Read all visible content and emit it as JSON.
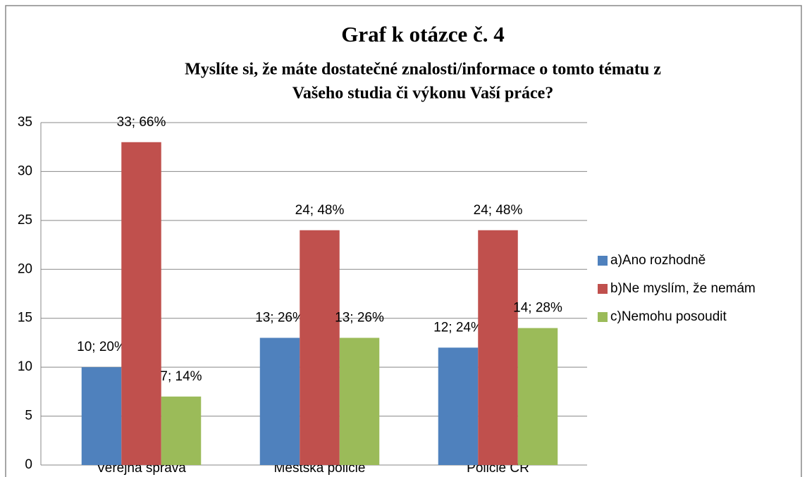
{
  "chart_data": {
    "type": "bar",
    "title": "Graf k otázce č. 4",
    "subtitle": [
      "Myslíte si, že máte dostatečné znalosti/informace o tomto tématu z",
      "Vašeho studia či výkonu Vaší práce?"
    ],
    "categories": [
      "Veřejná správa",
      "Městská policie",
      "Policie ČR"
    ],
    "series": [
      {
        "name": "a)Ano rozhodně",
        "color": "#4f81bd",
        "values": [
          10,
          13,
          12
        ],
        "value_labels": [
          "10; 20%",
          "13; 26%",
          "12; 24%"
        ]
      },
      {
        "name": "b)Ne myslím, že nemám",
        "color": "#c0504d",
        "values": [
          33,
          24,
          24
        ],
        "value_labels": [
          "33; 66%",
          "24; 48%",
          "24; 48%"
        ]
      },
      {
        "name": "c)Nemohu posoudit",
        "color": "#9bbb59",
        "values": [
          7,
          13,
          14
        ],
        "value_labels": [
          "7; 14%",
          "13; 26%",
          "14; 28%"
        ]
      }
    ],
    "ylim": [
      0,
      35
    ],
    "yticks": [
      0,
      5,
      10,
      15,
      20,
      25,
      30,
      35
    ],
    "grid": true,
    "legend": "right"
  }
}
